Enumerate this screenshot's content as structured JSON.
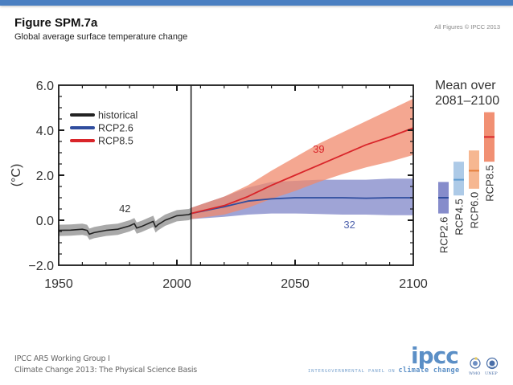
{
  "header": {
    "title": "Figure SPM.7a",
    "subtitle": "Global average surface temperature change",
    "copyright": "All Figures © IPCC 2013"
  },
  "footer": {
    "line1": "IPCC AR5 Working Group I",
    "line2": "Climate Change 2013: The Physical Science Basis",
    "logo_word": "ipcc",
    "logo_tagline_prefix": "Intergovernmental panel on",
    "logo_tagline_strong": "climate change",
    "org1": "WMO",
    "org2": "UNEP"
  },
  "colors": {
    "topbar": "#4a7fc1",
    "historical": "#222222",
    "historical_band": "#9a9a9a",
    "rcp26": "#2f4d9e",
    "rcp26_band": "#7f86c8",
    "rcp85": "#d9252a",
    "rcp85_band": "#f08a6c",
    "rcp45_box": "#a9c7e6",
    "rcp45_line": "#5f9bd0",
    "rcp60_box": "#f6b38b",
    "rcp60_line": "#e57d3a"
  },
  "chart_data": {
    "type": "line",
    "title": "",
    "xlabel": "",
    "ylabel": "(°C)",
    "xlim": [
      1950,
      2100
    ],
    "ylim": [
      -2.0,
      6.0
    ],
    "xticks": [
      1950,
      2000,
      2050,
      2100
    ],
    "xtick_labels": [
      "1950",
      "2000",
      "2050",
      "2100"
    ],
    "yticks": [
      -2.0,
      0.0,
      2.0,
      4.0,
      6.0
    ],
    "ytick_labels": [
      "−2.0",
      "0.0",
      "2.0",
      "4.0",
      "6.0"
    ],
    "grid": false,
    "divider_year": 2006,
    "legend": {
      "placement": "top-left",
      "entries": [
        "historical",
        "RCP2.6",
        "RCP8.5"
      ]
    },
    "series": [
      {
        "name": "historical",
        "model_count_label": "42",
        "x": [
          1950,
          1955,
          1960,
          1962,
          1963,
          1965,
          1970,
          1975,
          1980,
          1982,
          1983,
          1985,
          1990,
          1991,
          1992,
          1995,
          2000,
          2005,
          2006
        ],
        "y": [
          -0.45,
          -0.44,
          -0.4,
          -0.45,
          -0.62,
          -0.55,
          -0.45,
          -0.4,
          -0.25,
          -0.15,
          -0.35,
          -0.28,
          -0.05,
          -0.3,
          -0.2,
          0.0,
          0.2,
          0.25,
          0.3
        ],
        "lower": [
          -0.7,
          -0.69,
          -0.65,
          -0.7,
          -0.87,
          -0.8,
          -0.7,
          -0.65,
          -0.5,
          -0.4,
          -0.6,
          -0.53,
          -0.3,
          -0.55,
          -0.45,
          -0.25,
          -0.05,
          0.0,
          0.05
        ],
        "upper": [
          -0.2,
          -0.19,
          -0.15,
          -0.2,
          -0.37,
          -0.3,
          -0.2,
          -0.15,
          0.0,
          0.1,
          -0.1,
          -0.03,
          0.2,
          -0.05,
          0.05,
          0.25,
          0.45,
          0.5,
          0.55
        ]
      },
      {
        "name": "RCP2.6",
        "model_count_label": "32",
        "x": [
          2006,
          2020,
          2030,
          2040,
          2050,
          2060,
          2070,
          2080,
          2090,
          2100
        ],
        "y": [
          0.3,
          0.6,
          0.85,
          0.95,
          1.0,
          1.0,
          1.0,
          0.98,
          1.0,
          1.0
        ],
        "lower": [
          0.05,
          0.15,
          0.25,
          0.3,
          0.3,
          0.28,
          0.25,
          0.25,
          0.22,
          0.22
        ],
        "upper": [
          0.55,
          1.05,
          1.45,
          1.7,
          1.75,
          1.8,
          1.8,
          1.8,
          1.85,
          1.85
        ]
      },
      {
        "name": "RCP8.5",
        "model_count_label": "39",
        "x": [
          2006,
          2020,
          2030,
          2040,
          2050,
          2060,
          2070,
          2080,
          2090,
          2100
        ],
        "y": [
          0.3,
          0.65,
          1.05,
          1.55,
          2.0,
          2.45,
          2.9,
          3.35,
          3.7,
          4.1
        ],
        "lower": [
          0.05,
          0.25,
          0.55,
          0.95,
          1.3,
          1.7,
          2.05,
          2.35,
          2.6,
          2.9
        ],
        "upper": [
          0.55,
          1.05,
          1.55,
          2.2,
          2.8,
          3.4,
          3.9,
          4.4,
          4.9,
          5.4
        ]
      }
    ],
    "inset": {
      "title_line1": "Mean over",
      "title_line2": "2081–2100",
      "bars": [
        {
          "name": "RCP2.6",
          "mean": 1.0,
          "low": 0.3,
          "high": 1.7
        },
        {
          "name": "RCP4.5",
          "mean": 1.8,
          "low": 1.1,
          "high": 2.6
        },
        {
          "name": "RCP6.0",
          "mean": 2.2,
          "low": 1.4,
          "high": 3.1
        },
        {
          "name": "RCP8.5",
          "mean": 3.7,
          "low": 2.6,
          "high": 4.8
        }
      ]
    }
  }
}
